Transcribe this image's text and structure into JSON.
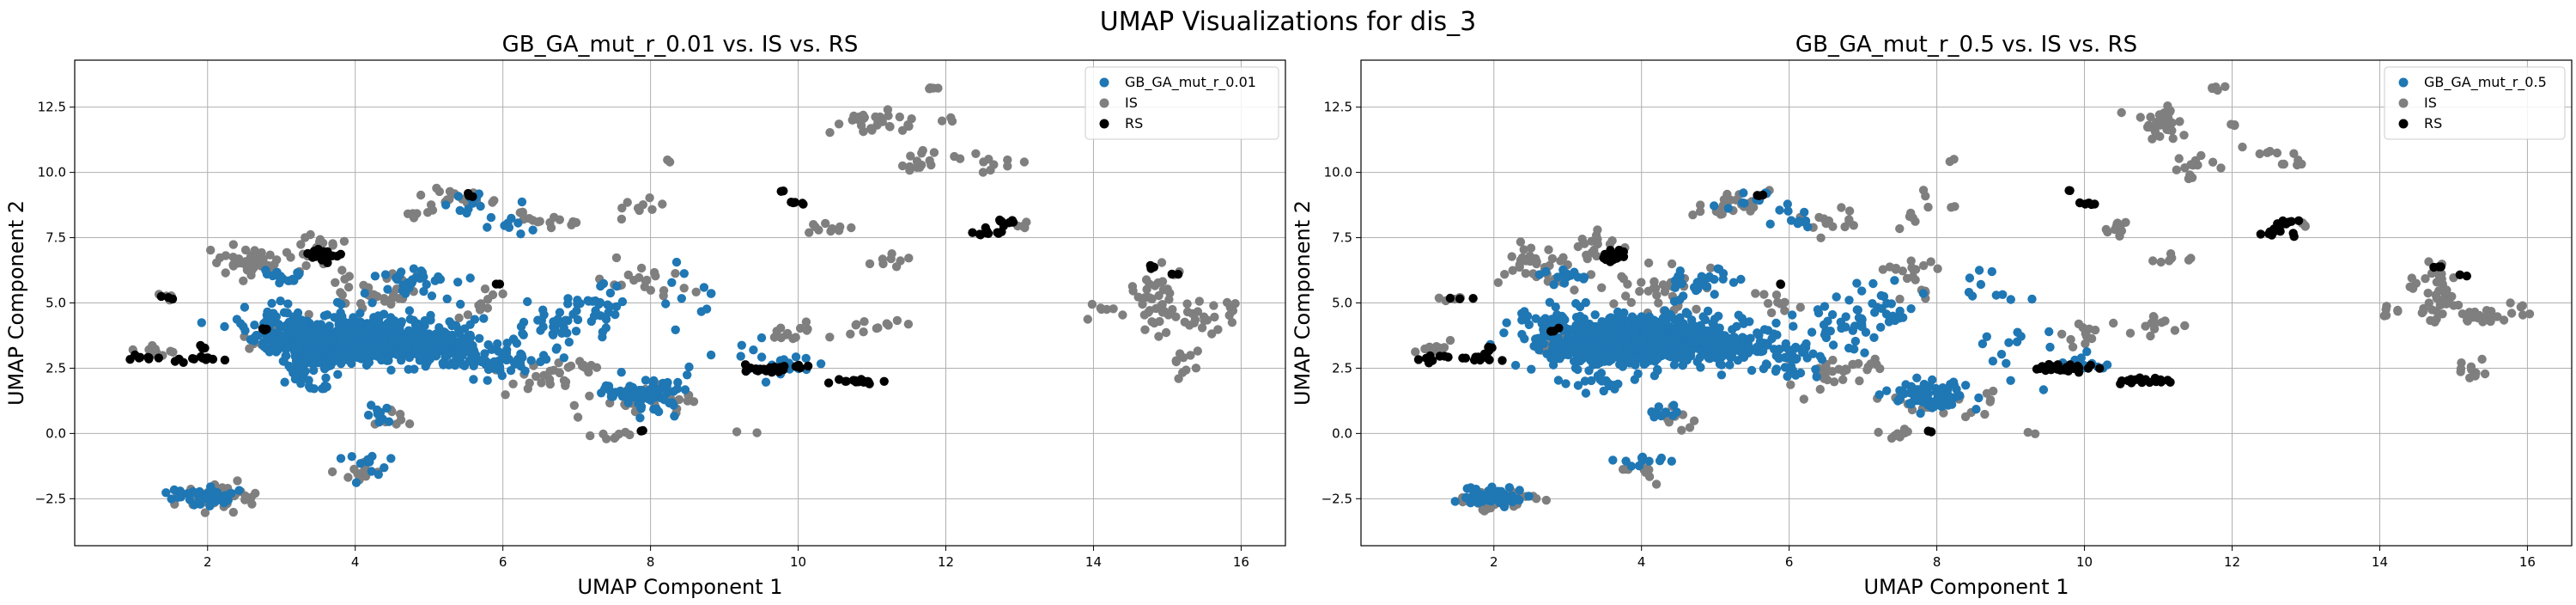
{
  "figure": {
    "suptitle": "UMAP Visualizations for dis_3"
  },
  "colors": {
    "ga": "#1f77b4",
    "is": "#7f7f7f",
    "rs": "#000000",
    "grid": "#b0b0b0"
  },
  "chart_data": [
    {
      "type": "scatter",
      "title": "GB_GA_mut_r_0.01 vs. IS vs. RS",
      "xlabel": "UMAP Component 1",
      "ylabel": "UMAP Component 2",
      "xlim": [
        0.2,
        16.6
      ],
      "ylim": [
        -4.3,
        14.3
      ],
      "xticks": [
        2,
        4,
        6,
        8,
        10,
        12,
        14,
        16
      ],
      "yticks": [
        -2.5,
        0.0,
        2.5,
        5.0,
        7.5,
        10.0,
        12.5
      ],
      "grid": true,
      "legend_position": "top-right",
      "series": [
        {
          "name": "GB_GA_mut_r_0.01",
          "color": "#1f77b4",
          "seed": 11
        },
        {
          "name": "IS",
          "color": "#7f7f7f",
          "seed": 23
        },
        {
          "name": "RS",
          "color": "#000000",
          "seed": 37
        }
      ]
    },
    {
      "type": "scatter",
      "title": "GB_GA_mut_r_0.5 vs. IS vs. RS",
      "xlabel": "UMAP Component 1",
      "ylabel": "UMAP Component 2",
      "xlim": [
        0.2,
        16.6
      ],
      "ylim": [
        -4.3,
        14.3
      ],
      "xticks": [
        2,
        4,
        6,
        8,
        10,
        12,
        14,
        16
      ],
      "yticks": [
        -2.5,
        0.0,
        2.5,
        5.0,
        7.5,
        10.0,
        12.5
      ],
      "grid": true,
      "legend_position": "top-right",
      "series": [
        {
          "name": "GB_GA_mut_r_0.5",
          "color": "#1f77b4",
          "seed": 53
        },
        {
          "name": "IS",
          "color": "#7f7f7f",
          "seed": 23
        },
        {
          "name": "RS",
          "color": "#000000",
          "seed": 37
        }
      ]
    }
  ],
  "clusters": {
    "is": [
      [
        1.2,
        3.2,
        0.25,
        0.25,
        12
      ],
      [
        1.4,
        5.2,
        0.2,
        0.15,
        5
      ],
      [
        2.6,
        6.5,
        0.5,
        0.6,
        40
      ],
      [
        3.5,
        7.2,
        0.3,
        0.6,
        15
      ],
      [
        4.3,
        5.5,
        0.6,
        0.7,
        35
      ],
      [
        2.1,
        -2.5,
        0.4,
        0.35,
        45
      ],
      [
        4.0,
        -1.5,
        0.3,
        0.3,
        10
      ],
      [
        4.4,
        0.5,
        0.3,
        0.4,
        10
      ],
      [
        5.3,
        8.9,
        0.4,
        0.4,
        15
      ],
      [
        6.6,
        8.2,
        0.5,
        0.4,
        15
      ],
      [
        6.5,
        2.2,
        0.5,
        0.5,
        20
      ],
      [
        7.8,
        6.0,
        0.4,
        0.6,
        20
      ],
      [
        7.8,
        8.6,
        0.3,
        0.5,
        10
      ],
      [
        8.0,
        1.2,
        0.6,
        0.5,
        30
      ],
      [
        7.5,
        -0.1,
        0.3,
        0.2,
        8
      ],
      [
        7.0,
        2.5,
        0.3,
        0.3,
        10
      ],
      [
        8.2,
        10.5,
        0.1,
        0.1,
        2
      ],
      [
        9.3,
        0.0,
        0.1,
        0.1,
        2
      ],
      [
        10.0,
        3.8,
        0.3,
        0.4,
        12
      ],
      [
        10.4,
        7.8,
        0.2,
        0.2,
        10
      ],
      [
        11.0,
        11.9,
        0.4,
        0.4,
        30
      ],
      [
        11.6,
        10.4,
        0.3,
        0.5,
        15
      ],
      [
        11.8,
        13.2,
        0.1,
        0.1,
        6
      ],
      [
        12.6,
        10.5,
        0.3,
        0.3,
        10
      ],
      [
        10.9,
        4.1,
        0.4,
        0.3,
        12
      ],
      [
        11.2,
        6.7,
        0.3,
        0.2,
        8
      ],
      [
        12.0,
        11.9,
        0.1,
        0.1,
        3
      ],
      [
        13.0,
        8.0,
        0.1,
        0.2,
        4
      ],
      [
        14.1,
        4.7,
        0.2,
        0.3,
        6
      ],
      [
        14.8,
        5.2,
        0.25,
        1.0,
        40
      ],
      [
        15.4,
        4.5,
        0.3,
        0.5,
        20
      ],
      [
        15.2,
        2.5,
        0.2,
        0.4,
        10
      ],
      [
        15.8,
        4.8,
        0.2,
        0.2,
        6
      ],
      [
        5.0,
        8.5,
        0.3,
        0.3,
        8
      ],
      [
        2.8,
        3.5,
        0.3,
        0.5,
        10
      ],
      [
        5.8,
        5.0,
        0.3,
        0.4,
        10
      ]
    ],
    "rs": [
      [
        1.2,
        2.9,
        0.2,
        0.1,
        8
      ],
      [
        1.5,
        5.2,
        0.15,
        0.05,
        3
      ],
      [
        1.8,
        2.9,
        0.25,
        0.12,
        12
      ],
      [
        1.9,
        3.3,
        0.1,
        0.1,
        3
      ],
      [
        3.6,
        6.8,
        0.15,
        0.25,
        18
      ],
      [
        2.8,
        4.0,
        0.1,
        0.1,
        3
      ],
      [
        5.6,
        9.1,
        0.1,
        0.05,
        3
      ],
      [
        5.9,
        5.7,
        0.05,
        0.05,
        2
      ],
      [
        7.9,
        0.1,
        0.05,
        0.05,
        2
      ],
      [
        9.7,
        2.5,
        0.35,
        0.12,
        25
      ],
      [
        10.0,
        8.8,
        0.15,
        0.1,
        5
      ],
      [
        10.8,
        2.0,
        0.35,
        0.1,
        18
      ],
      [
        12.6,
        7.7,
        0.2,
        0.15,
        12
      ],
      [
        12.8,
        8.1,
        0.15,
        0.1,
        8
      ],
      [
        14.8,
        6.4,
        0.05,
        0.05,
        3
      ],
      [
        15.1,
        6.1,
        0.05,
        0.05,
        2
      ],
      [
        9.8,
        9.3,
        0.05,
        0.05,
        2
      ]
    ],
    "ga": [
      [
        4.0,
        3.6,
        1.0,
        0.75,
        620
      ],
      [
        3.6,
        3.2,
        0.5,
        0.5,
        120
      ],
      [
        5.2,
        3.3,
        0.7,
        0.6,
        120
      ],
      [
        2.9,
        4.2,
        0.5,
        0.6,
        50
      ],
      [
        6.0,
        2.8,
        0.5,
        0.5,
        40
      ],
      [
        2.0,
        -2.4,
        0.35,
        0.28,
        55
      ],
      [
        4.1,
        -1.1,
        0.3,
        0.4,
        12
      ],
      [
        4.3,
        0.8,
        0.2,
        0.3,
        10
      ],
      [
        7.9,
        1.5,
        0.45,
        0.5,
        80
      ],
      [
        6.8,
        4.2,
        0.6,
        0.8,
        40
      ],
      [
        9.2,
        3.2,
        0.8,
        1.2,
        15
      ],
      [
        10.0,
        2.6,
        0.3,
        0.2,
        12
      ],
      [
        5.5,
        8.8,
        0.3,
        0.4,
        10
      ],
      [
        4.8,
        5.8,
        0.5,
        0.5,
        30
      ],
      [
        7.2,
        5.0,
        0.4,
        0.8,
        20
      ],
      [
        8.5,
        5.5,
        0.5,
        0.8,
        10
      ],
      [
        3.3,
        2.0,
        0.4,
        0.4,
        20
      ],
      [
        3.0,
        6.0,
        0.3,
        0.3,
        15
      ],
      [
        6.2,
        8.0,
        0.3,
        0.5,
        10
      ]
    ]
  }
}
